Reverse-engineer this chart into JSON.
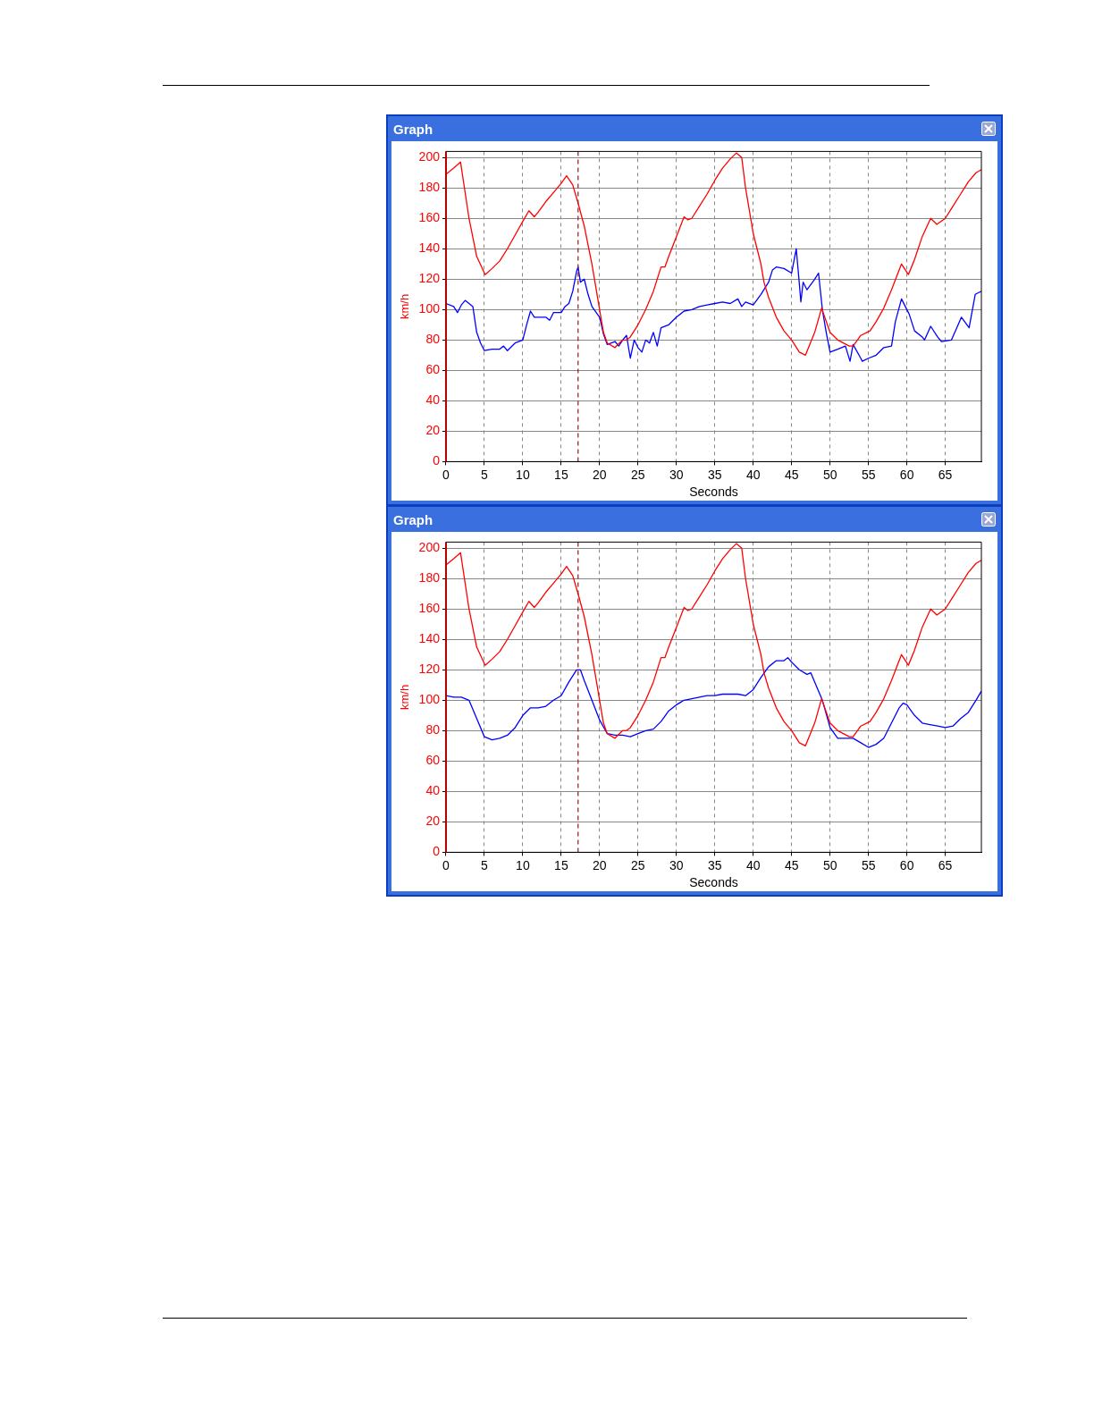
{
  "chart_data": [
    {
      "type": "line",
      "title": "Graph",
      "xlabel": "Seconds",
      "ylabel": "km/h",
      "xlim": [
        0,
        69.7
      ],
      "xticks": [
        0,
        5,
        10,
        15,
        20,
        25,
        30,
        35,
        40,
        45,
        50,
        55,
        60,
        65
      ],
      "ylim": [
        0,
        204
      ],
      "yticks": [
        0,
        20,
        40,
        60,
        80,
        100,
        120,
        140,
        160,
        180,
        200
      ],
      "grid": true,
      "ref_lines": [
        {
          "axis": "x",
          "value": 17.2,
          "color": "#8b1a1a",
          "line_style": "dashed"
        }
      ],
      "series": [
        {
          "color": "#ff0000",
          "x": [
            0,
            1,
            1.9,
            3,
            4,
            5.1,
            6,
            7,
            8,
            9,
            10,
            10.8,
            11.5,
            12,
            13,
            14,
            15,
            15.7,
            16.5,
            17.2,
            18,
            19,
            20,
            20.5,
            21,
            22,
            23,
            23.5,
            24,
            25,
            26,
            27,
            28,
            28.5,
            29,
            30,
            31,
            31.5,
            32,
            33,
            34,
            35,
            36,
            37,
            37.8,
            38.5,
            39,
            40,
            41,
            41.4,
            42,
            43,
            44,
            45,
            46,
            46.8,
            48,
            48.9,
            50,
            51,
            52.5,
            53,
            54,
            55.2,
            56,
            57,
            58,
            59.3,
            60.2,
            61,
            62,
            63.1,
            63.9,
            65,
            66,
            67,
            68,
            69,
            69.7
          ],
          "values": [
            189,
            193,
            197,
            160,
            135,
            123,
            127,
            132,
            140,
            149,
            158,
            165,
            161,
            164,
            171,
            177,
            183,
            188,
            182,
            170,
            155,
            130,
            100,
            85,
            78,
            75,
            80,
            80,
            82,
            90,
            100,
            112,
            128,
            128,
            135,
            148,
            161,
            159,
            160,
            168,
            176,
            185,
            193,
            199,
            203,
            200,
            180,
            150,
            130,
            118,
            108,
            95,
            86,
            80,
            72,
            70,
            85,
            101,
            85,
            80,
            76,
            76,
            83,
            86,
            92,
            101,
            113,
            130,
            123,
            133,
            148,
            160,
            156,
            160,
            168,
            176,
            184,
            190,
            192
          ]
        },
        {
          "color": "#0000ff",
          "x": [
            0,
            1,
            1.5,
            2,
            2.5,
            3,
            3.5,
            4,
            4.5,
            5,
            6,
            7,
            7.5,
            8,
            9,
            10,
            10.5,
            11,
            11.5,
            12,
            13,
            13.5,
            14,
            15,
            15.5,
            16,
            16.5,
            17,
            17.2,
            17.5,
            18,
            18.5,
            19,
            20,
            20.5,
            21,
            22,
            22.5,
            23,
            23.5,
            24,
            24.5,
            25,
            25.5,
            26,
            26.5,
            27,
            27.5,
            28,
            29,
            30,
            31,
            32,
            33,
            34,
            35,
            36,
            37,
            38,
            38.5,
            39,
            40,
            41,
            42,
            42.5,
            43,
            44,
            45,
            45.6,
            46,
            46.2,
            46.5,
            47,
            48,
            48.5,
            49,
            49.5,
            50,
            51,
            52,
            52.6,
            53,
            54,
            54.2,
            55,
            56,
            57,
            58,
            58.5,
            59.3,
            60.3,
            61,
            62,
            62.3,
            63.1,
            64,
            64.5,
            65.8,
            66.5,
            67.1,
            68.1,
            68.9,
            69.7
          ],
          "values": [
            104,
            102,
            98,
            103,
            106,
            104,
            102,
            85,
            78,
            73,
            74,
            74,
            76,
            73,
            78,
            80,
            90,
            99,
            95,
            95,
            95,
            93,
            98,
            98,
            102,
            104,
            112,
            125,
            128,
            118,
            120,
            110,
            102,
            95,
            84,
            77,
            79,
            76,
            80,
            83,
            68,
            80,
            75,
            72,
            80,
            78,
            85,
            76,
            88,
            90,
            95,
            99,
            100,
            102,
            103,
            104,
            105,
            104,
            107,
            102,
            105,
            103,
            110,
            118,
            126,
            128,
            127,
            124,
            140,
            117,
            105,
            118,
            113,
            120,
            124,
            100,
            85,
            72,
            74,
            76,
            66,
            77,
            68,
            66,
            68,
            70,
            75,
            76,
            92,
            107,
            97,
            86,
            82,
            80,
            89,
            82,
            79,
            80,
            88,
            95,
            88,
            110,
            112
          ]
        }
      ]
    },
    {
      "type": "line",
      "title": "Graph",
      "xlabel": "Seconds",
      "ylabel": "km/h",
      "xlim": [
        0,
        69.7
      ],
      "xticks": [
        0,
        5,
        10,
        15,
        20,
        25,
        30,
        35,
        40,
        45,
        50,
        55,
        60,
        65
      ],
      "ylim": [
        0,
        204
      ],
      "yticks": [
        0,
        20,
        40,
        60,
        80,
        100,
        120,
        140,
        160,
        180,
        200
      ],
      "grid": true,
      "ref_lines": [
        {
          "axis": "x",
          "value": 17.2,
          "color": "#8b1a1a",
          "line_style": "dashed"
        }
      ],
      "series": [
        {
          "color": "#ff0000",
          "x": [
            0,
            1,
            1.9,
            3,
            4,
            5.1,
            6,
            7,
            8,
            9,
            10,
            10.8,
            11.5,
            12,
            13,
            14,
            15,
            15.7,
            16.5,
            17.2,
            18,
            19,
            20,
            20.5,
            21,
            22,
            23,
            23.5,
            24,
            25,
            26,
            27,
            28,
            28.5,
            29,
            30,
            31,
            31.5,
            32,
            33,
            34,
            35,
            36,
            37,
            37.8,
            38.5,
            39,
            40,
            41,
            41.4,
            42,
            43,
            44,
            45,
            46,
            46.8,
            48,
            48.9,
            50,
            51,
            52.5,
            53,
            54,
            55.2,
            56,
            57,
            58,
            59.3,
            60.2,
            61,
            62,
            63.1,
            63.9,
            65,
            66,
            67,
            68,
            69,
            69.7
          ],
          "values": [
            189,
            193,
            197,
            160,
            135,
            123,
            127,
            132,
            140,
            149,
            158,
            165,
            161,
            164,
            171,
            177,
            183,
            188,
            182,
            170,
            155,
            130,
            100,
            85,
            78,
            75,
            80,
            80,
            82,
            90,
            100,
            112,
            128,
            128,
            135,
            148,
            161,
            159,
            160,
            168,
            176,
            185,
            193,
            199,
            203,
            200,
            180,
            150,
            130,
            118,
            108,
            95,
            86,
            80,
            72,
            70,
            85,
            101,
            85,
            80,
            76,
            76,
            83,
            86,
            92,
            101,
            113,
            130,
            123,
            133,
            148,
            160,
            156,
            160,
            168,
            176,
            184,
            190,
            192
          ]
        },
        {
          "color": "#0000ff",
          "x": [
            0,
            1,
            2,
            3,
            4,
            5,
            6,
            7,
            8,
            9,
            10,
            11,
            12,
            13,
            14,
            15,
            16,
            17,
            17.5,
            18,
            19,
            20,
            21,
            22,
            23,
            24,
            25,
            26,
            27,
            28,
            29,
            30,
            31,
            32,
            33,
            34,
            35,
            36,
            37,
            38,
            39,
            40,
            41,
            42,
            43,
            44,
            44.5,
            45,
            46,
            47,
            47.5,
            48,
            49,
            50,
            51,
            52,
            53,
            54,
            55,
            56,
            57,
            58,
            59,
            59.5,
            60,
            61,
            62,
            63,
            64,
            65,
            66,
            67,
            68,
            69,
            69.7
          ],
          "values": [
            103,
            102,
            102,
            100,
            88,
            76,
            74,
            75,
            77,
            82,
            90,
            95,
            95,
            96,
            100,
            103,
            112,
            120,
            120,
            113,
            100,
            87,
            78,
            77,
            77,
            76,
            78,
            80,
            81,
            86,
            93,
            97,
            100,
            101,
            102,
            103,
            103,
            104,
            104,
            104,
            103,
            107,
            115,
            122,
            126,
            126,
            128,
            125,
            120,
            117,
            118,
            112,
            100,
            82,
            75,
            75,
            75,
            72,
            69,
            71,
            75,
            85,
            95,
            98,
            97,
            90,
            85,
            84,
            83,
            82,
            83,
            88,
            92,
            100,
            106
          ]
        }
      ]
    }
  ]
}
